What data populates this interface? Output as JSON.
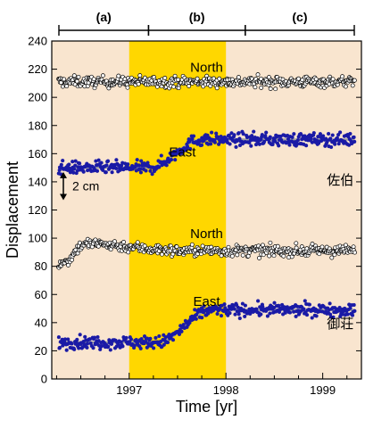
{
  "chart_data": {
    "type": "scatter",
    "title": "",
    "xlabel": "Time [yr]",
    "ylabel": "Displacement",
    "xlim": [
      1996.2,
      1999.4
    ],
    "ylim": [
      0,
      240
    ],
    "x_ticks": [
      1997,
      1998,
      1999
    ],
    "x_tick_labels": [
      "1997",
      "1998",
      "1999"
    ],
    "y_ticks": [
      0,
      20,
      40,
      60,
      80,
      100,
      120,
      140,
      160,
      180,
      200,
      220,
      240
    ],
    "y_tick_labels": [
      "0",
      "20",
      "40",
      "60",
      "80",
      "100",
      "120",
      "140",
      "160",
      "180",
      "200",
      "220",
      "240"
    ],
    "grid": false,
    "colors": {
      "background_periods": "#f9e5cf",
      "highlight_period": "#ffd700",
      "north_marker": "#000000",
      "east_marker": "#1a1aa6",
      "trend_line": "#a0a0a0"
    },
    "periods": [
      {
        "label": "(a)",
        "start": 1996.2,
        "end": 1997.2
      },
      {
        "label": "(b)",
        "start": 1997.2,
        "end": 1998.2
      },
      {
        "label": "(c)",
        "start": 1998.2,
        "end": 1999.4
      }
    ],
    "highlight_span": [
      1997.0,
      1998.0
    ],
    "scale_bar": {
      "label": "2 cm",
      "from": 127,
      "to": 147
    },
    "stations": [
      {
        "label": "佐伯",
        "label_x": 1999.32,
        "label_y": 138,
        "series": [
          {
            "name": "North",
            "marker": "open-circle",
            "label_x": 1997.8,
            "label_y": 218,
            "trend": {
              "type": "constant",
              "value": 211,
              "start": 1996.55
            }
          },
          {
            "name": "East",
            "marker": "filled-circle",
            "label_x": 1997.55,
            "label_y": 158,
            "trend": {
              "type": "sigmoid",
              "before": 150,
              "after": 170,
              "t0": 1997.2,
              "t1": 1997.75
            }
          }
        ]
      },
      {
        "label": "御荘",
        "label_x": 1999.32,
        "label_y": 36,
        "series": [
          {
            "name": "North",
            "marker": "open-circle",
            "label_x": 1997.8,
            "label_y": 100,
            "trend": {
              "type": "exp-decay",
              "before": 82,
              "after": 96,
              "end_value": 91,
              "t0": 1996.3,
              "t1": 1996.55
            }
          },
          {
            "name": "East",
            "marker": "filled-circle",
            "label_x": 1997.8,
            "label_y": 52,
            "trend": {
              "type": "sigmoid",
              "before": 26,
              "after": 49,
              "t0": 1997.3,
              "t1": 1997.85
            }
          }
        ]
      }
    ]
  }
}
